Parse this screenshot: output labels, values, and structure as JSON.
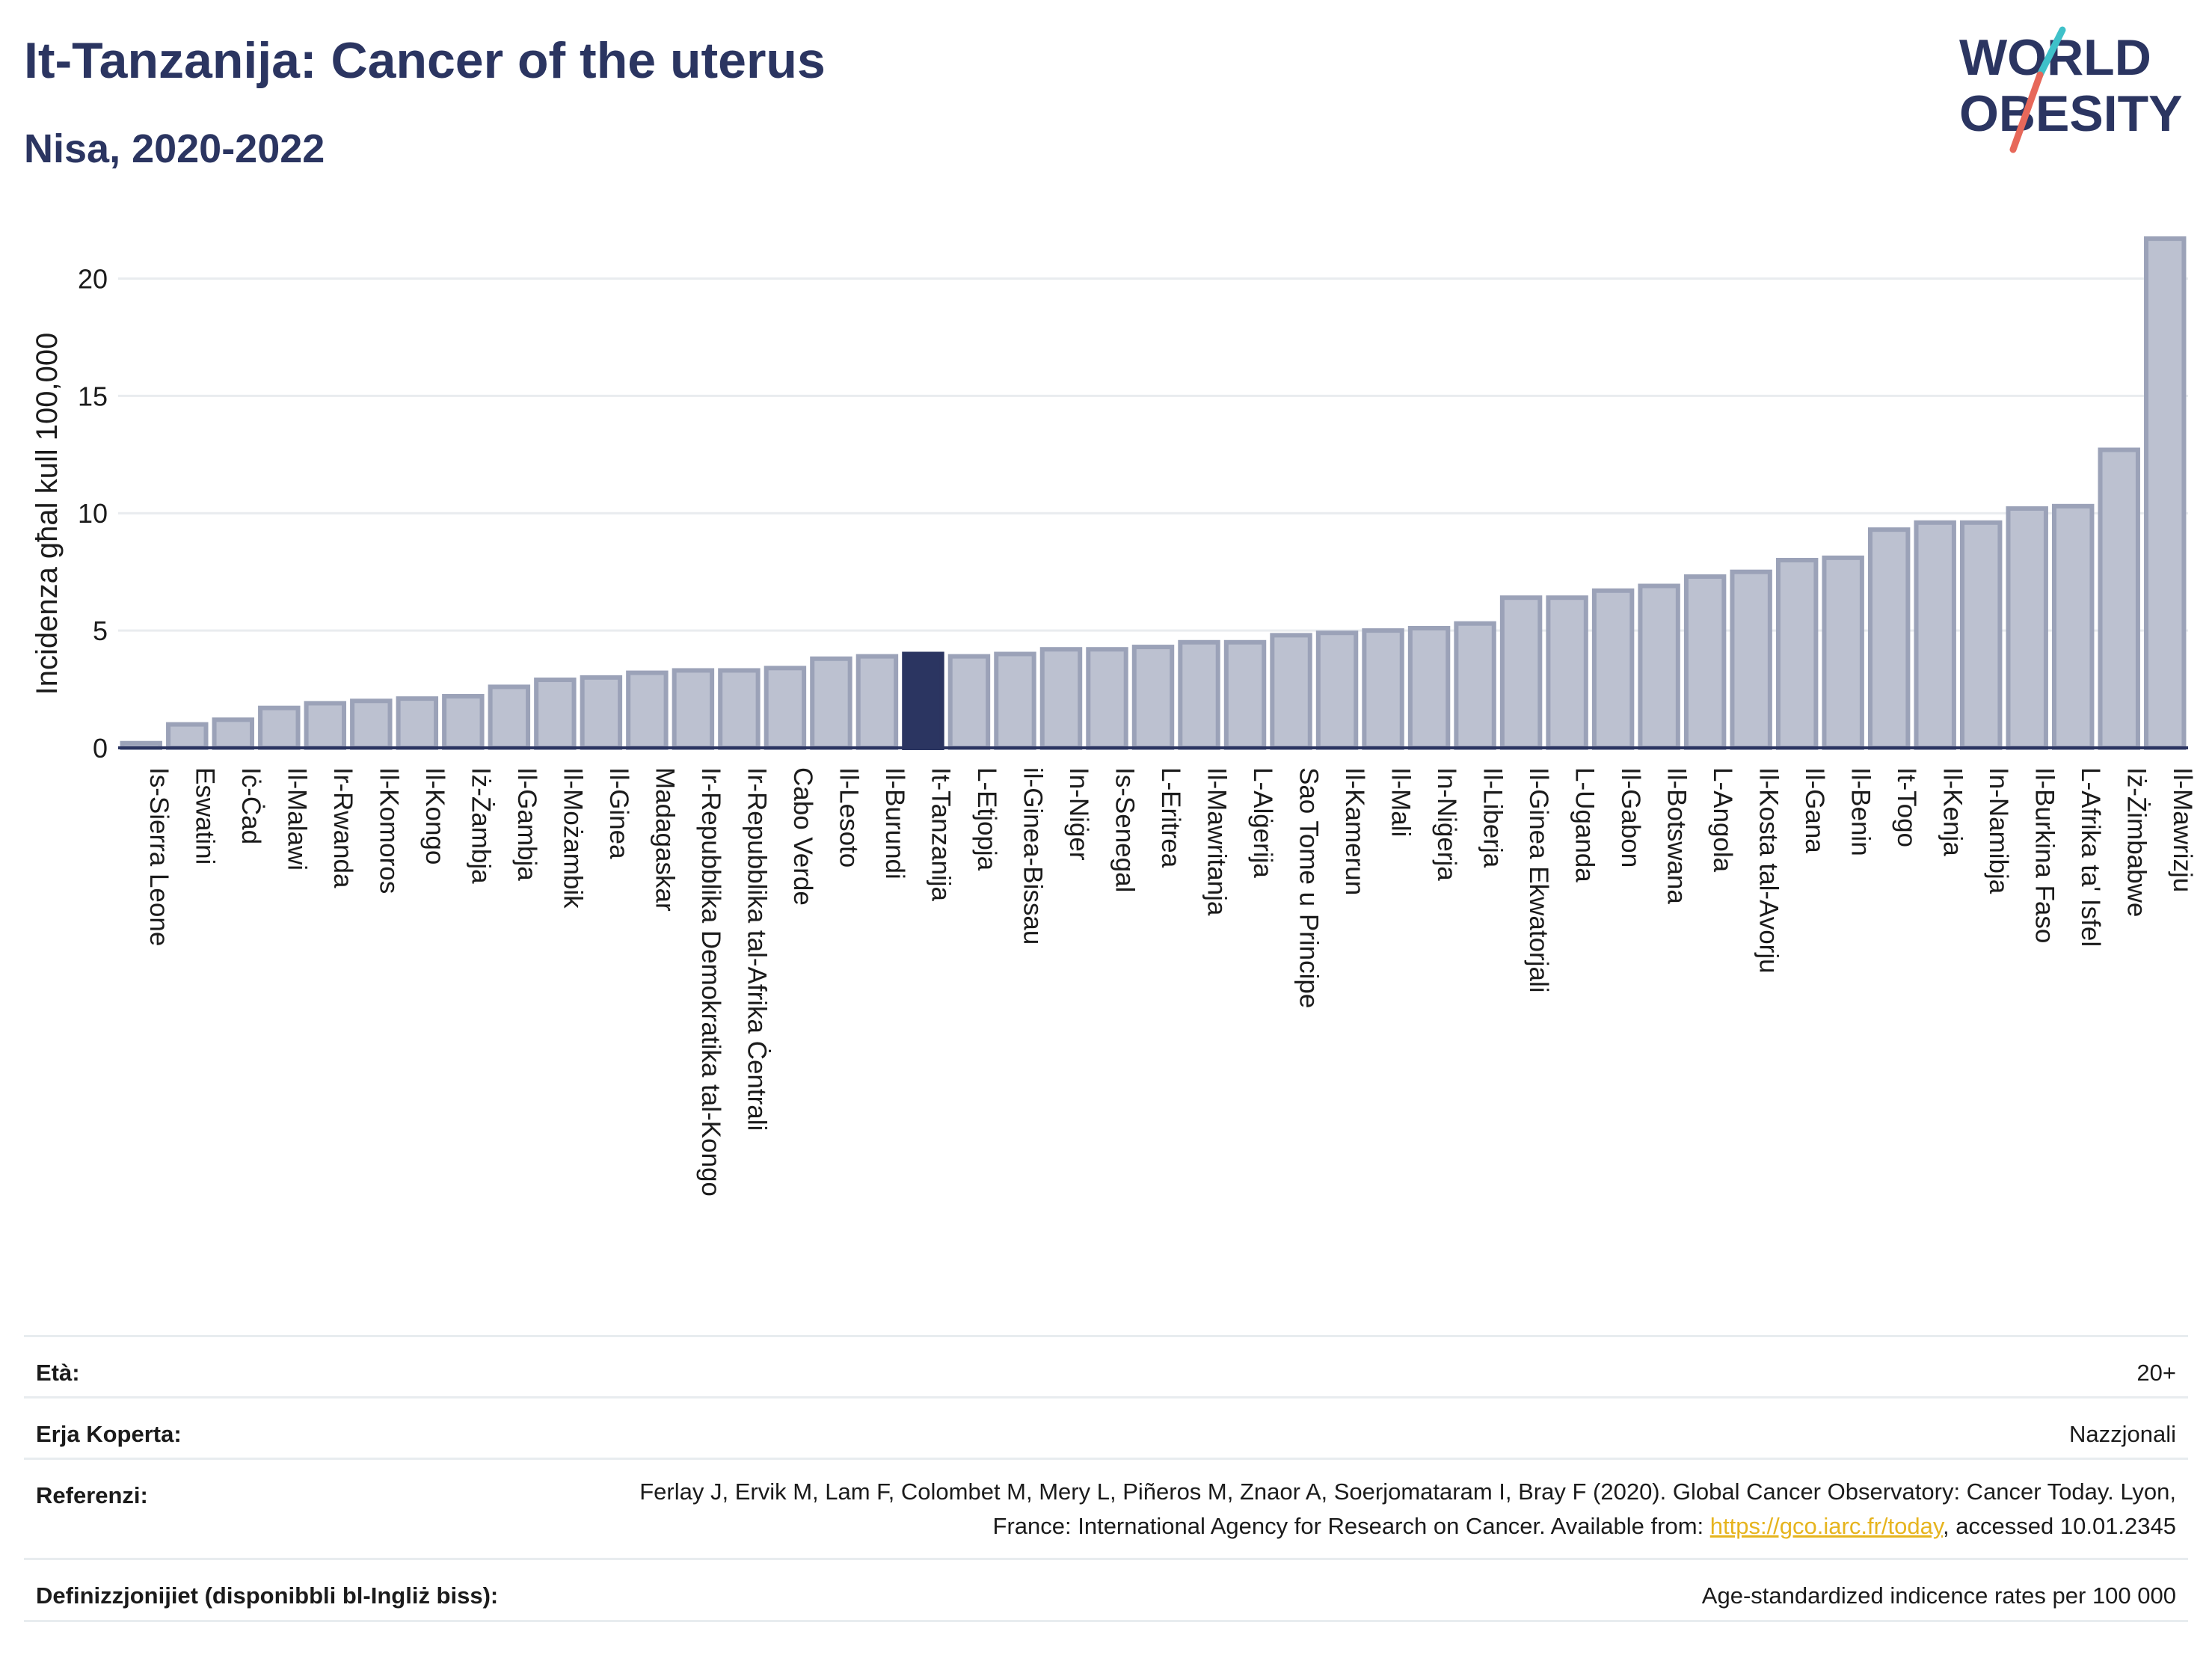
{
  "title": "It-Tanzanija: Cancer of the uterus",
  "subtitle": "Nisa, 2020-2022",
  "logo": {
    "line1": "WORLD",
    "line2": "OBESITY",
    "accent": "#e7685a",
    "accent2": "#3fc1c9"
  },
  "colors": {
    "bar": "#bcc1d0",
    "bar_stroke": "#9ba2b8",
    "highlight": "#2b3561",
    "grid": "#e9ecef",
    "text": "#2b3561"
  },
  "chart_data": {
    "type": "bar",
    "ylabel": "Incidenza għal kull 100,000",
    "ylim": [
      0,
      22.5
    ],
    "yticks": [
      0,
      5,
      10,
      15,
      20
    ],
    "highlight": "It-Tanzanija",
    "categories": [
      "Is-Sierra Leone",
      "Eswatini",
      "Iċ-Ċad",
      "Il-Malawi",
      "Ir-Rwanda",
      "Il-Komoros",
      "Il-Kongo",
      "Iż-Żambja",
      "Il-Gambja",
      "Il-Możambik",
      "Il-Ginea",
      "Madagaskar",
      "Ir-Repubblika Demokratika tal-Kongo",
      "Ir-Repubblika tal-Afrika Ċentrali",
      "Cabo Verde",
      "Il-Lesoto",
      "Il-Burundi",
      "It-Tanzanija",
      "L-Etjopja",
      "il-Ginea-Bissau",
      "In-Niġer",
      "Is-Senegal",
      "L-Eritrea",
      "Il-Mawritanja",
      "L-Alġerija",
      "Sao Tome u Principe",
      "Il-Kamerun",
      "Il-Mali",
      "In-Niġerja",
      "Il-Liberja",
      "Il-Ginea Ekwatorjali",
      "L-Uganda",
      "Il-Gabon",
      "Il-Botswana",
      "L-Angola",
      "Il-Kosta tal-Avorju",
      "Il-Gana",
      "Il-Benin",
      "It-Togo",
      "Il-Kenja",
      "In-Namibja",
      "Il-Burkina Faso",
      "L-Afrika ta' Isfel",
      "Iż-Żimbabwe",
      "Il-Mawrizju"
    ],
    "values": [
      0.2,
      1.0,
      1.2,
      1.7,
      1.9,
      2.0,
      2.1,
      2.2,
      2.6,
      2.9,
      3.0,
      3.2,
      3.3,
      3.3,
      3.4,
      3.8,
      3.9,
      4.0,
      3.9,
      4.0,
      4.2,
      4.2,
      4.3,
      4.5,
      4.5,
      4.8,
      4.9,
      5.0,
      5.1,
      5.3,
      6.4,
      6.4,
      6.7,
      6.9,
      7.3,
      7.5,
      8.0,
      8.1,
      9.3,
      9.6,
      9.6,
      10.2,
      10.3,
      12.7,
      21.7
    ]
  },
  "meta": {
    "age": {
      "label": "Età:",
      "value": "20+"
    },
    "area": {
      "label": "Erja Koperta:",
      "value": "Nazzjonali"
    },
    "refs": {
      "label": "Referenzi:",
      "text1": "Ferlay J, Ervik M, Lam F, Colombet M, Mery L, Piñeros M, Znaor A, Soerjomataram I, Bray F (2020). Global Cancer Observatory: Cancer Today. Lyon, France: International Agency for Research on Cancer. Available from: ",
      "link": "https://gco.iarc.fr/today",
      "text2": ", accessed 10.01.2345"
    },
    "defs": {
      "label": "Definizzjonijiet (disponibbli bl-Ingliż biss):",
      "value": "Age-standardized indicence rates per 100 000"
    }
  }
}
